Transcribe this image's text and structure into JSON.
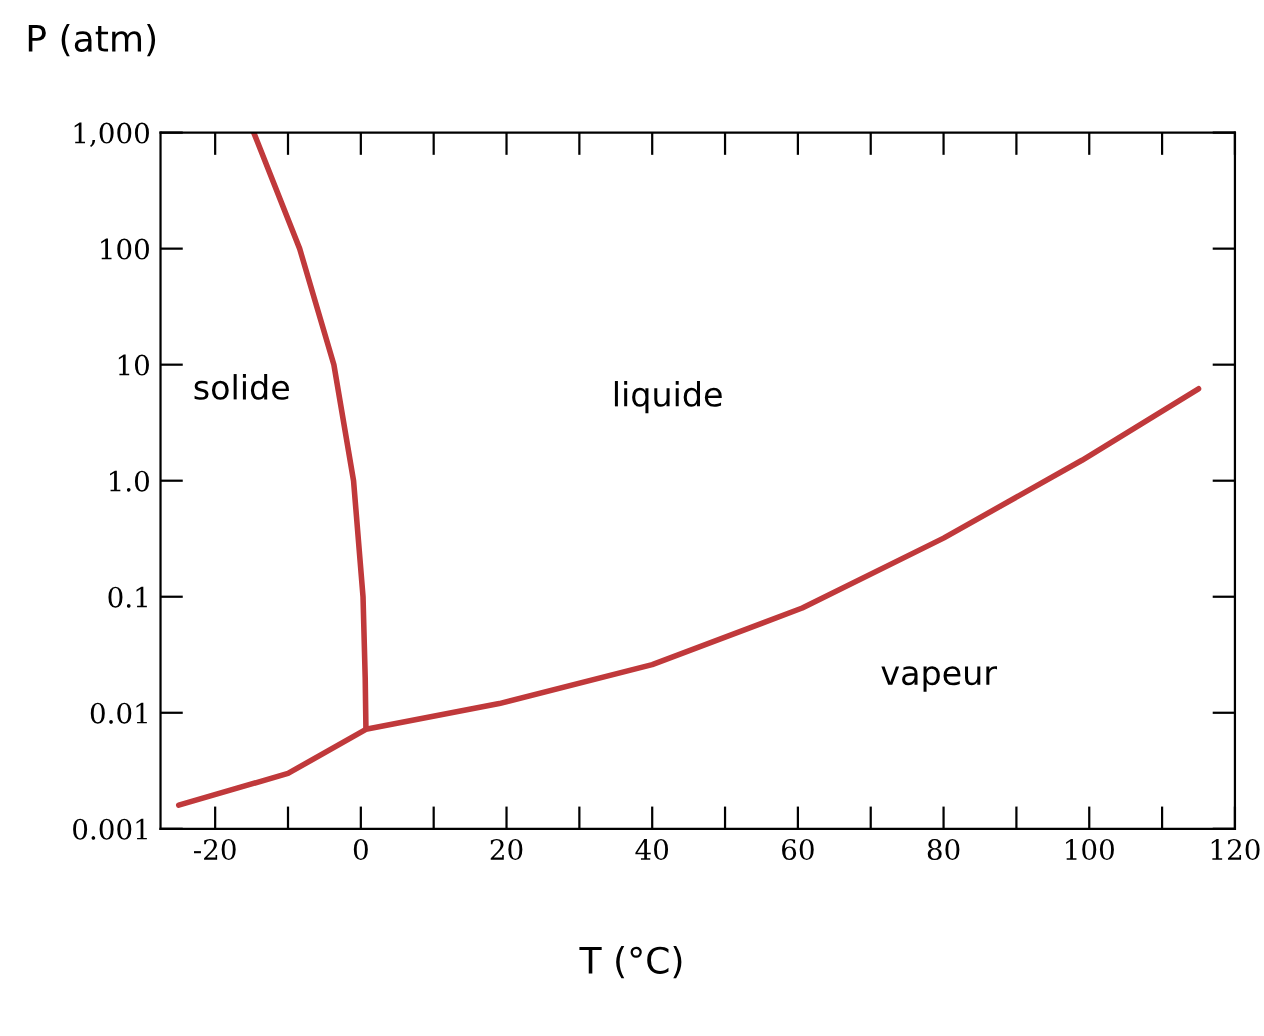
{
  "chart_data": {
    "type": "line",
    "xlabel": "T (°C)",
    "ylabel": "P (atm)",
    "log": "y",
    "grid": false,
    "legend": false,
    "marker": "none",
    "line_style": "solid",
    "xlim": [
      -27.5,
      120
    ],
    "ylim": [
      0.001,
      1000
    ],
    "xticks": [
      -20,
      {
        "value": -10,
        "label": null
      },
      0,
      {
        "value": 10,
        "label": null
      },
      20,
      {
        "value": 30,
        "label": null
      },
      40,
      {
        "value": 50,
        "label": null
      },
      60,
      {
        "value": 70,
        "label": null
      },
      80,
      {
        "value": 90,
        "label": null
      },
      100,
      {
        "value": 110,
        "label": null
      },
      120
    ],
    "yticks": [
      {
        "value": 0.001,
        "label": "0.001"
      },
      {
        "value": 0.01,
        "label": "0.01"
      },
      {
        "value": 0.1,
        "label": "0.1"
      },
      {
        "value": 1,
        "label": "1.0"
      },
      {
        "value": 10,
        "label": "10"
      },
      {
        "value": 100,
        "label": "100"
      },
      {
        "value": 1000,
        "label": "1,000"
      }
    ],
    "series": [
      {
        "color": "#c0393b",
        "x": [
          -14.7,
          -8.4,
          -3.7,
          -1,
          0.3,
          0.6,
          0.7
        ],
        "values": [
          1000,
          100,
          10,
          1,
          0.1,
          0.02,
          0.0073
        ]
      },
      {
        "color": "#c0393b",
        "x": [
          -25,
          -10,
          0.7,
          19,
          40,
          60.6,
          80,
          99,
          115
        ],
        "values": [
          0.0016,
          0.003,
          0.0072,
          0.012,
          0.026,
          0.08,
          0.32,
          1.5,
          6.2
        ]
      }
    ],
    "annotations": [
      "solide",
      "liquide",
      "vapeur"
    ]
  }
}
